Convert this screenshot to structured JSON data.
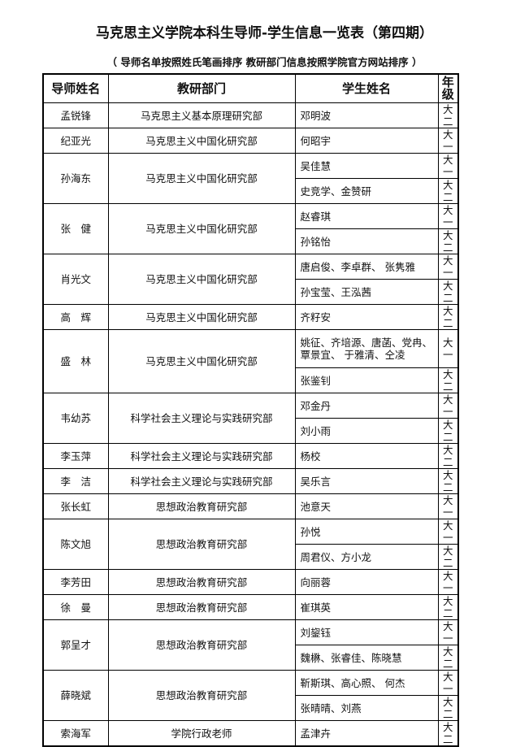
{
  "title": "马克思主义学院本科生导师-学生信息一览表（第四期）",
  "subtitle": "（ 导师名单按照姓氏笔画排序    教研部门信息按照学院官方网站排序  ）",
  "headers": [
    "导师姓名",
    "教研部门",
    "学生姓名",
    "年级"
  ],
  "teachers": [
    {
      "name": "孟锐锋",
      "department": "马克思主义基本原理研究部",
      "students": [
        {
          "names": "邓明波",
          "grade": "大二"
        }
      ]
    },
    {
      "name": "纪亚光",
      "department": "马克思主义中国化研究部",
      "students": [
        {
          "names": "何昭宇",
          "grade": "大一"
        }
      ]
    },
    {
      "name": "孙海东",
      "department": "马克思主义中国化研究部",
      "students": [
        {
          "names": "吴佳慧",
          "grade": "大一"
        },
        {
          "names": "史竞学、金赞研",
          "grade": "大二"
        }
      ]
    },
    {
      "name": "张　健",
      "department": "马克思主义中国化研究部",
      "students": [
        {
          "names": "赵睿琪",
          "grade": "大一"
        },
        {
          "names": "孙铭怡",
          "grade": "大二"
        }
      ]
    },
    {
      "name": "肖光文",
      "department": "马克思主义中国化研究部",
      "students": [
        {
          "names": "唐启俊、李卓群、 张隽雅",
          "grade": "大一"
        },
        {
          "names": "孙宝莹、王泓茜",
          "grade": "大二"
        }
      ]
    },
    {
      "name": "高　辉",
      "department": "马克思主义中国化研究部",
      "students": [
        {
          "names": "齐籽安",
          "grade": "大二"
        }
      ]
    },
    {
      "name": "盛　林",
      "department": "马克思主义中国化研究部",
      "students": [
        {
          "names": "姚征、齐培源、唐菡、党冉、覃景宜、 于雅清、仝凌",
          "grade": "大一"
        },
        {
          "names": "张鉴钊",
          "grade": "大二"
        }
      ]
    },
    {
      "name": "韦幼苏",
      "department": "科学社会主义理论与实践研究部",
      "students": [
        {
          "names": "邓金丹",
          "grade": "大一"
        },
        {
          "names": "刘小雨",
          "grade": "大二"
        }
      ]
    },
    {
      "name": "李玉萍",
      "department": "科学社会主义理论与实践研究部",
      "students": [
        {
          "names": "杨校",
          "grade": "大二"
        }
      ]
    },
    {
      "name": "李　洁",
      "department": "科学社会主义理论与实践研究部",
      "students": [
        {
          "names": "吴乐言",
          "grade": "大二"
        }
      ]
    },
    {
      "name": "张长虹",
      "department": "思想政治教育研究部",
      "students": [
        {
          "names": "池意天",
          "grade": "大一"
        }
      ]
    },
    {
      "name": "陈文旭",
      "department": "思想政治教育研究部",
      "students": [
        {
          "names": "孙悦",
          "grade": "大一"
        },
        {
          "names": "周君仪、方小龙",
          "grade": "大二"
        }
      ]
    },
    {
      "name": "李芳田",
      "department": "思想政治教育研究部",
      "students": [
        {
          "names": "向丽蓉",
          "grade": "大一"
        }
      ]
    },
    {
      "name": "徐　曼",
      "department": "思想政治教育研究部",
      "students": [
        {
          "names": "崔琪英",
          "grade": "大二"
        }
      ]
    },
    {
      "name": "郭呈才",
      "department": "思想政治教育研究部",
      "students": [
        {
          "names": "刘鋆钰",
          "grade": "大一"
        },
        {
          "names": "魏楙、张睿佳、陈晓慧",
          "grade": "大二"
        }
      ]
    },
    {
      "name": "薛晓斌",
      "department": "思想政治教育研究部",
      "students": [
        {
          "names": "靳斯琪、高心照、 何杰",
          "grade": "大一"
        },
        {
          "names": "张晴晴、刘燕",
          "grade": "大二"
        }
      ]
    },
    {
      "name": "索海军",
      "department": "学院行政老师",
      "students": [
        {
          "names": "孟津卉",
          "grade": "大二"
        }
      ]
    }
  ]
}
